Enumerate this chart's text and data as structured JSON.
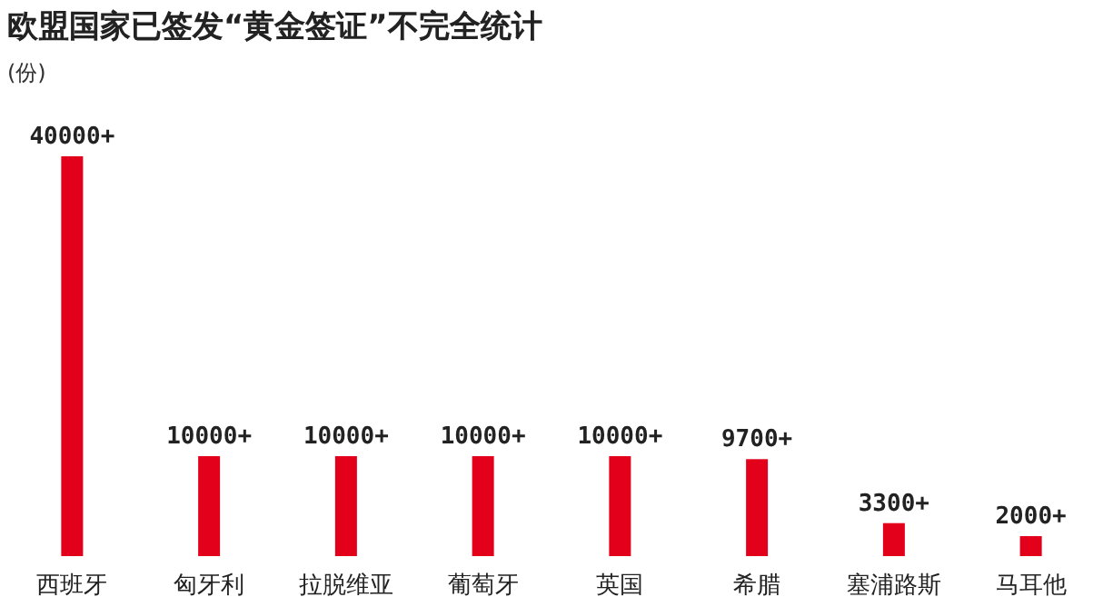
{
  "chart_data": {
    "type": "bar",
    "title": "欧盟国家已签发“黄金签证”不完全统计",
    "ylabel": "(份)",
    "categories": [
      "西班牙",
      "匈牙利",
      "拉脱维亚",
      "葡萄牙",
      "英国",
      "希腊",
      "塞浦路斯",
      "马耳他"
    ],
    "values": [
      40000,
      10000,
      10000,
      10000,
      10000,
      9700,
      3300,
      2000
    ],
    "value_labels": [
      "40000+",
      "10000+",
      "10000+",
      "10000+",
      "10000+",
      "9700+",
      "3300+",
      "2000+"
    ],
    "color": "#e3001b"
  }
}
